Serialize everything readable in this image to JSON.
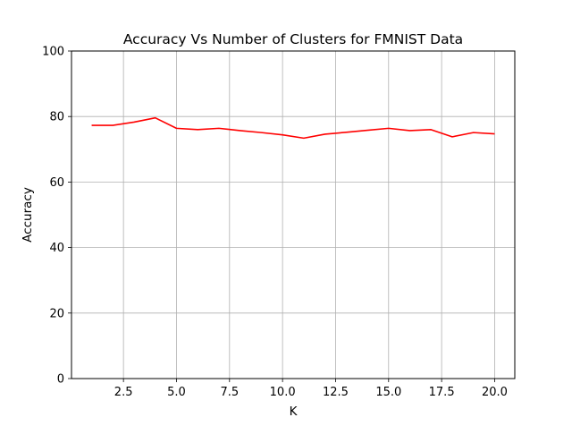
{
  "chart_data": {
    "type": "line",
    "title": "Accuracy Vs Number of Clusters for FMNIST Data",
    "xlabel": "K",
    "ylabel": "Accuracy",
    "xlim": [
      0.05,
      20.95
    ],
    "ylim": [
      0,
      100
    ],
    "xticks": [
      2.5,
      5.0,
      7.5,
      10.0,
      12.5,
      15.0,
      17.5,
      20.0
    ],
    "xtick_labels": [
      "2.5",
      "5.0",
      "7.5",
      "10.0",
      "12.5",
      "15.0",
      "17.5",
      "20.0"
    ],
    "yticks": [
      0,
      20,
      40,
      60,
      80,
      100
    ],
    "ytick_labels": [
      "0",
      "20",
      "40",
      "60",
      "80",
      "100"
    ],
    "grid": true,
    "series": [
      {
        "color": "#ff0000",
        "x": [
          1,
          2,
          3,
          4,
          5,
          6,
          7,
          8,
          9,
          10,
          11,
          12,
          13,
          14,
          15,
          16,
          17,
          18,
          19,
          20
        ],
        "y": [
          77.3,
          77.3,
          78.3,
          79.6,
          76.4,
          76.0,
          76.4,
          75.7,
          75.1,
          74.4,
          73.4,
          74.6,
          75.2,
          75.8,
          76.4,
          75.7,
          76.0,
          73.8,
          75.1,
          74.7
        ]
      }
    ]
  }
}
